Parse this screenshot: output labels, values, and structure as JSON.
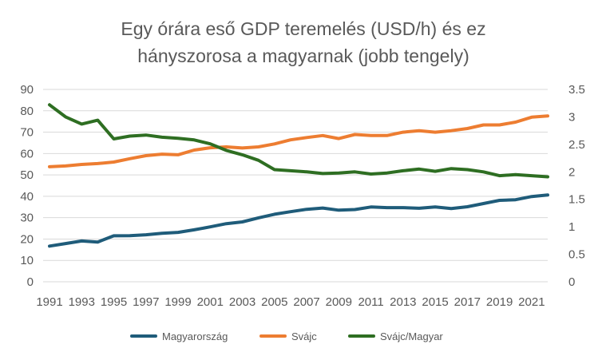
{
  "chart_data": {
    "type": "line",
    "title_lines": [
      "Egy órára eső GDP teremelés (USD/h) és ez",
      "hányszorosa a magyarnak (jobb tengely)"
    ],
    "x": [
      1991,
      1992,
      1993,
      1994,
      1995,
      1996,
      1997,
      1998,
      1999,
      2000,
      2001,
      2002,
      2003,
      2004,
      2005,
      2006,
      2007,
      2008,
      2009,
      2010,
      2011,
      2012,
      2013,
      2014,
      2015,
      2016,
      2017,
      2018,
      2019,
      2020,
      2021,
      2022
    ],
    "x_tick_labels": [
      "1991",
      "1993",
      "1995",
      "1997",
      "1999",
      "2001",
      "2003",
      "2005",
      "2007",
      "2009",
      "2011",
      "2013",
      "2015",
      "2017",
      "2019",
      "2021"
    ],
    "y_left": {
      "min": 0,
      "max": 90,
      "step": 10,
      "tick_labels": [
        "0",
        "10",
        "20",
        "30",
        "40",
        "50",
        "60",
        "70",
        "80",
        "90"
      ]
    },
    "y_right": {
      "min": 0,
      "max": 3.5,
      "step": 0.5,
      "tick_labels": [
        "0",
        "0.5",
        "1",
        "1.5",
        "2",
        "2.5",
        "3",
        "3.5"
      ]
    },
    "grid": true,
    "legend_position": "bottom",
    "series": [
      {
        "name": "Magyarország",
        "axis": "left",
        "color": "#1f5c7a",
        "values": [
          16.7,
          17.9,
          19.1,
          18.6,
          21.5,
          21.6,
          22.0,
          22.7,
          23.1,
          24.3,
          25.7,
          27.2,
          28.0,
          29.9,
          31.6,
          32.8,
          33.9,
          34.5,
          33.5,
          33.8,
          35.0,
          34.7,
          34.7,
          34.4,
          35.0,
          34.3,
          35.1,
          36.6,
          38.1,
          38.4,
          39.9,
          40.6
        ]
      },
      {
        "name": "Svájc",
        "axis": "left",
        "color": "#ed7d31",
        "values": [
          53.8,
          54.2,
          54.9,
          55.3,
          56.0,
          57.6,
          59.0,
          59.7,
          59.4,
          61.6,
          62.7,
          63.1,
          62.6,
          63.1,
          64.5,
          66.4,
          67.5,
          68.4,
          67.0,
          68.9,
          68.4,
          68.4,
          70.0,
          70.7,
          70.0,
          70.7,
          71.7,
          73.4,
          73.4,
          74.7,
          77.0,
          77.6
        ]
      },
      {
        "name": "Svájc/Magyar",
        "axis": "right",
        "color": "#2e6e22",
        "values": [
          3.22,
          3.0,
          2.87,
          2.94,
          2.6,
          2.65,
          2.67,
          2.63,
          2.61,
          2.58,
          2.51,
          2.39,
          2.31,
          2.21,
          2.04,
          2.02,
          2.0,
          1.97,
          1.98,
          2.0,
          1.96,
          1.98,
          2.02,
          2.05,
          2.01,
          2.06,
          2.04,
          2.0,
          1.93,
          1.95,
          1.93,
          1.91
        ]
      }
    ]
  }
}
